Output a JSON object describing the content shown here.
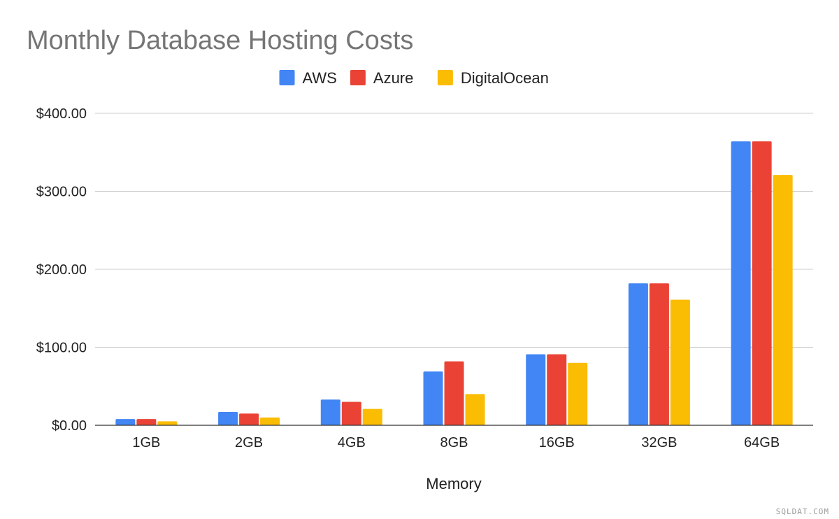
{
  "chart_data": {
    "type": "bar",
    "title": "Monthly Database Hosting Costs",
    "xlabel": "Memory",
    "ylabel": "",
    "categories": [
      "1GB",
      "2GB",
      "4GB",
      "8GB",
      "16GB",
      "32GB",
      "64GB"
    ],
    "series": [
      {
        "name": "AWS",
        "color": "#4285f4",
        "values": [
          8,
          17,
          33,
          69,
          91,
          182,
          364
        ]
      },
      {
        "name": "Azure",
        "color": "#ea4335",
        "values": [
          8,
          15,
          30,
          82,
          91,
          182,
          364
        ]
      },
      {
        "name": "DigitalOcean",
        "color": "#fbbc04",
        "values": [
          5,
          10,
          21,
          40,
          80,
          161,
          321
        ]
      }
    ],
    "ylim": [
      0,
      400
    ],
    "yticks": [
      0,
      100,
      200,
      300,
      400
    ],
    "ytick_labels": [
      "$0.00",
      "$100.00",
      "$200.00",
      "$300.00",
      "$400.00"
    ],
    "grid": true,
    "legend_position": "top"
  },
  "watermark": "SQLDAT.COM"
}
